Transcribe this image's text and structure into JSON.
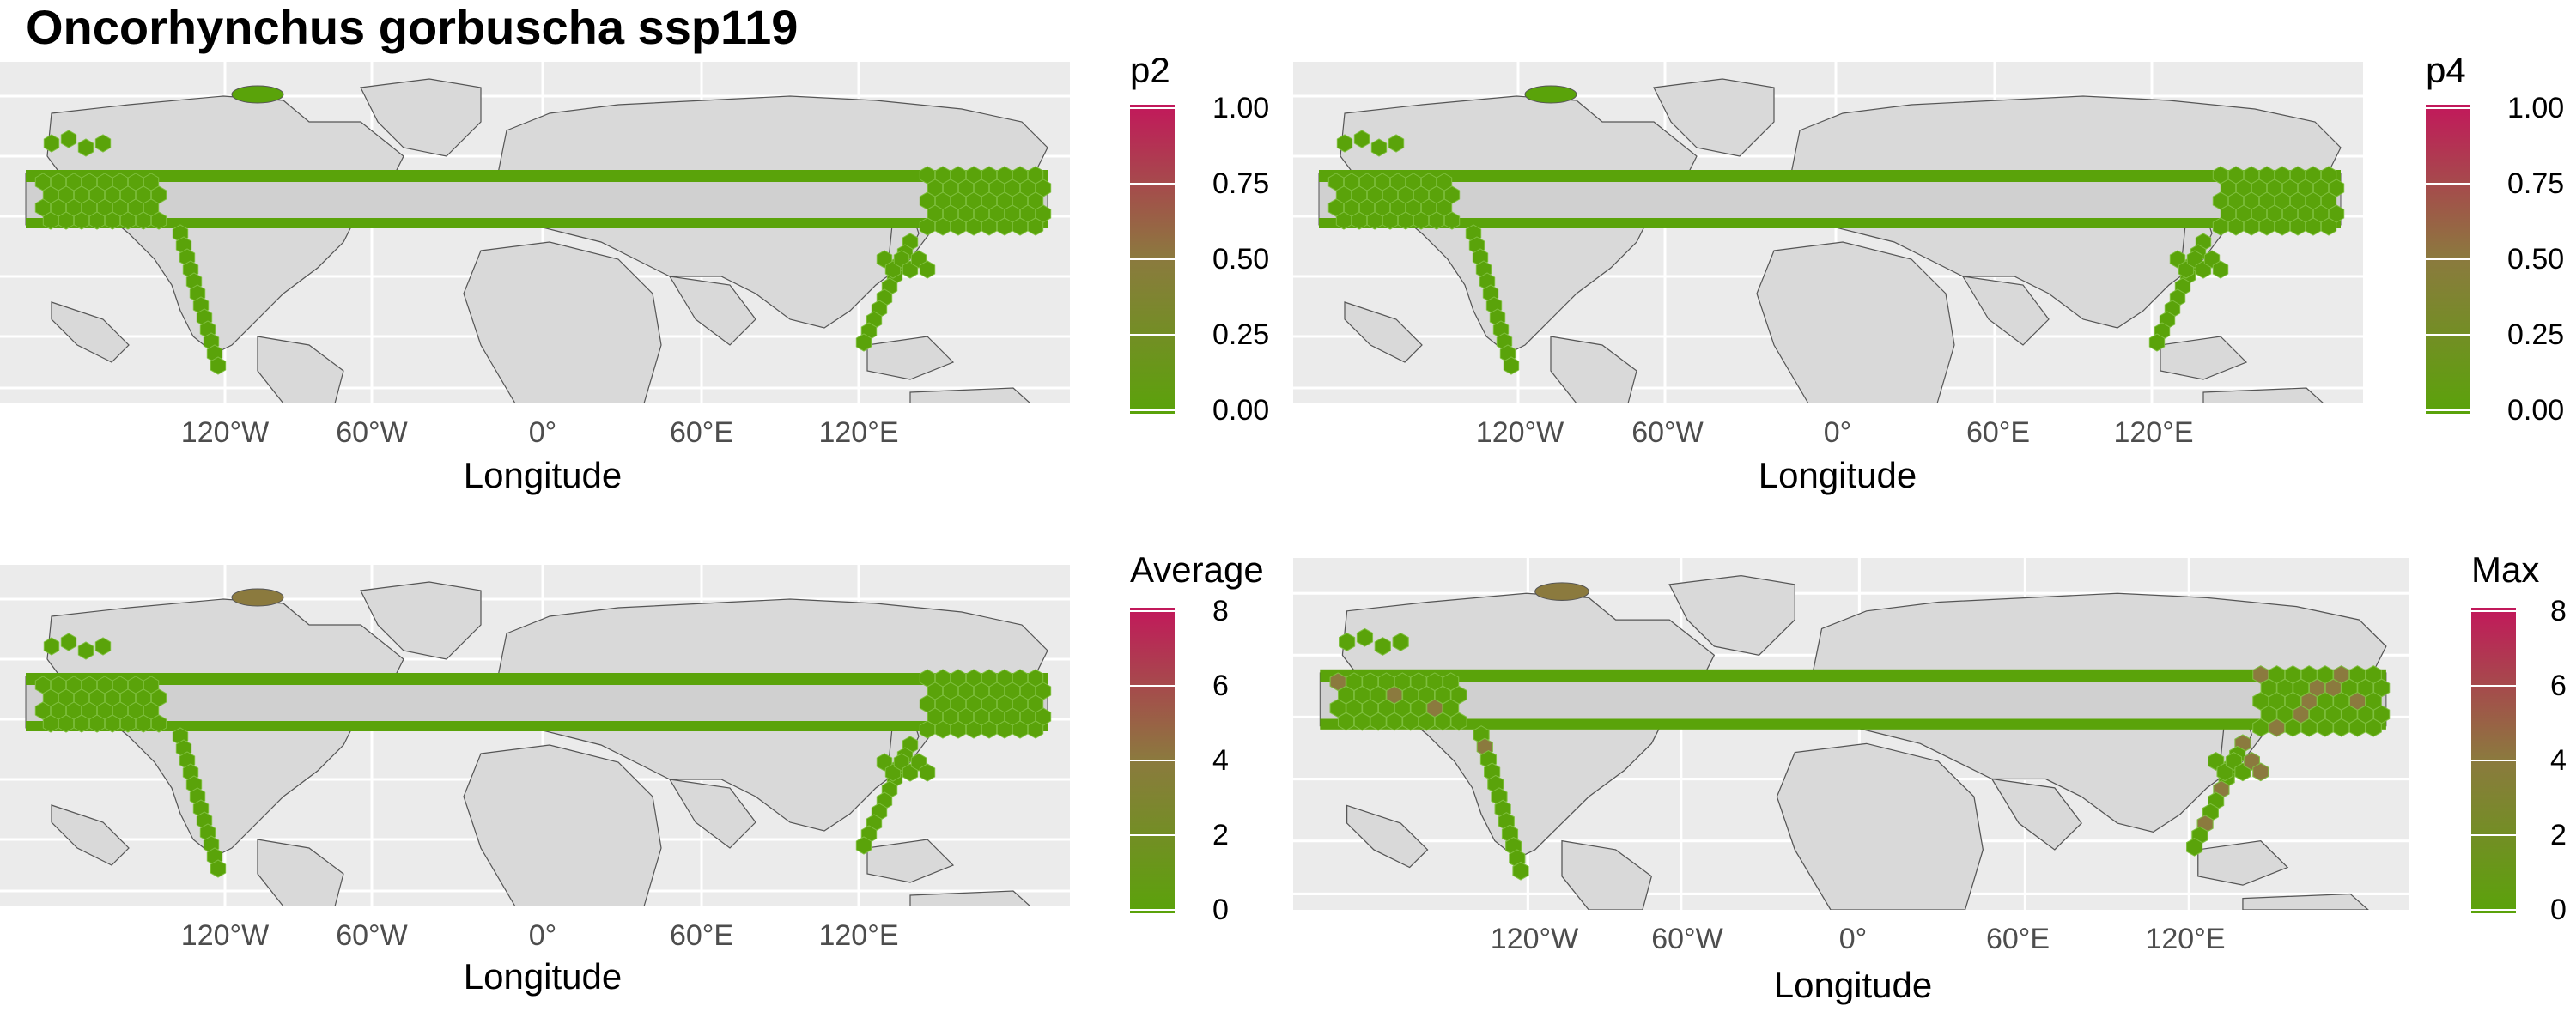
{
  "title": "Oncorhynchus gorbuscha ssp119",
  "colors": {
    "panel_bg": "#ebebeb",
    "land": "#d9d9d9",
    "coast": "#555555",
    "grid": "#ffffff",
    "cell_low": "#5aa30a",
    "cell_mid": "#8b7a3e",
    "cell_high": "#c2185b"
  },
  "panels": [
    {
      "id": "p2",
      "legend_title": "p2",
      "legend_ticks": [
        "1.00",
        "0.75",
        "0.50",
        "0.25",
        "0.00"
      ],
      "x_ticks": [
        "120°W",
        "60°W",
        "0°",
        "60°E",
        "120°E"
      ],
      "x_label": "Longitude"
    },
    {
      "id": "p4",
      "legend_title": "p4",
      "legend_ticks": [
        "1.00",
        "0.75",
        "0.50",
        "0.25",
        "0.00"
      ],
      "x_ticks": [
        "120°W",
        "60°W",
        "0°",
        "60°E",
        "120°E"
      ],
      "x_label": "Longitude"
    },
    {
      "id": "average",
      "legend_title": "Average",
      "legend_ticks": [
        "8",
        "6",
        "4",
        "2",
        "0"
      ],
      "x_ticks": [
        "120°W",
        "60°W",
        "0°",
        "60°E",
        "120°E"
      ],
      "x_label": "Longitude"
    },
    {
      "id": "max",
      "legend_title": "Max",
      "legend_ticks": [
        "8",
        "6",
        "4",
        "2",
        "0"
      ],
      "x_ticks": [
        "120°W",
        "60°W",
        "0°",
        "60°E",
        "120°E"
      ],
      "x_label": "Longitude"
    }
  ]
}
